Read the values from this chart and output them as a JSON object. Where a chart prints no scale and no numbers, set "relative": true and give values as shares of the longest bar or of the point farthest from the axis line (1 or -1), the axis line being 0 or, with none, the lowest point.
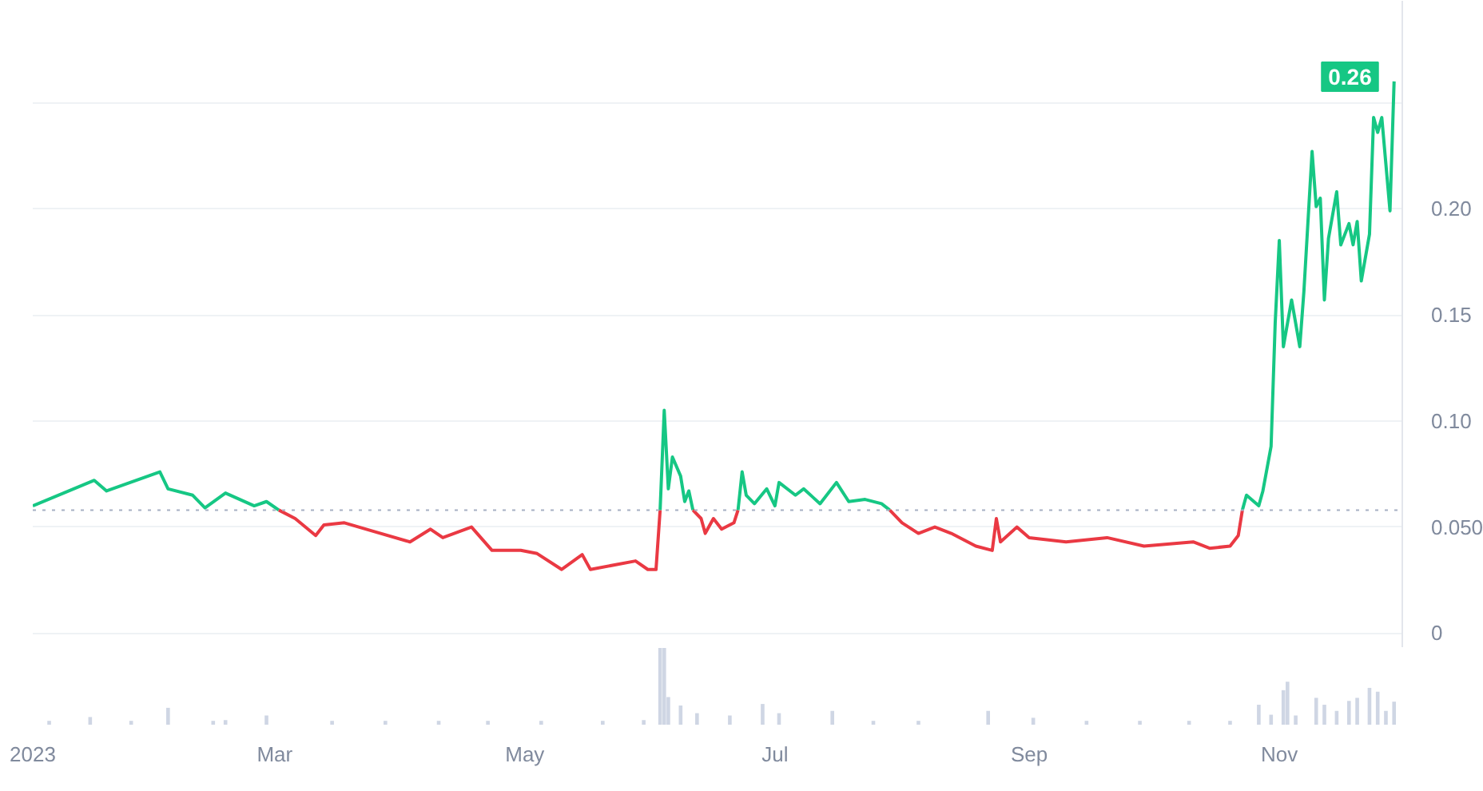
{
  "chart_data": [
    {
      "type": "line",
      "xlim": [
        "2023-01-01",
        "2023-12-01"
      ],
      "ylim": [
        -0.007,
        0.298
      ],
      "yticks": [
        0,
        {
          "value": 0.05,
          "label": "0.050"
        },
        {
          "value": 0.1,
          "label": "0.10"
        },
        0.15,
        {
          "value": 0.2,
          "label": "0.20"
        },
        {
          "value": 0.25,
          "label": null
        }
      ],
      "tick_labels": "y",
      "grid": "y",
      "marker": "none",
      "line_style": "solid",
      "ref_lines": [
        {
          "axis": "y",
          "value": 0.058,
          "color": "#a6b0c3",
          "line_style": "dotted"
        }
      ],
      "annotations": [
        {
          "text": "0.26",
          "x": "2023-11-29",
          "y": 0.26
        }
      ],
      "series": [
        {
          "color": "#16c784",
          "x": [
            "2023-01-01",
            "2023-01-16",
            "2023-01-19",
            "2023-02-01",
            "2023-02-03",
            "2023-02-09",
            "2023-02-12",
            "2023-02-17",
            "2023-02-24",
            "2023-02-27",
            "2023-03-02"
          ],
          "values": [
            0.06,
            0.072,
            0.067,
            0.076,
            0.068,
            0.065,
            0.059,
            0.066,
            0.06,
            0.062,
            0.058
          ]
        },
        {
          "color": "#ea3943",
          "x": [
            "2023-03-02",
            "2023-03-06",
            "2023-03-11",
            "2023-03-13",
            "2023-03-18",
            "2023-03-25",
            "2023-04-03",
            "2023-04-08",
            "2023-04-11",
            "2023-04-18",
            "2023-04-23",
            "2023-04-30",
            "2023-05-04",
            "2023-05-10",
            "2023-05-15",
            "2023-05-17",
            "2023-05-28",
            "2023-05-31",
            "2023-06-02",
            "2023-06-03"
          ],
          "values": [
            0.058,
            0.054,
            0.046,
            0.051,
            0.052,
            0.048,
            0.043,
            0.049,
            0.045,
            0.05,
            0.039,
            0.039,
            0.0375,
            0.03,
            0.037,
            0.03,
            0.034,
            0.03,
            0.03,
            0.058
          ]
        },
        {
          "color": "#16c784",
          "x": [
            "2023-06-03",
            "2023-06-04",
            "2023-06-05",
            "2023-06-06",
            "2023-06-08",
            "2023-06-09",
            "2023-06-10",
            "2023-06-11"
          ],
          "values": [
            0.058,
            0.105,
            0.068,
            0.083,
            0.074,
            0.062,
            0.067,
            0.058
          ]
        },
        {
          "color": "#ea3943",
          "x": [
            "2023-06-11",
            "2023-06-13",
            "2023-06-14",
            "2023-06-16",
            "2023-06-18",
            "2023-06-21",
            "2023-06-22"
          ],
          "values": [
            0.058,
            0.054,
            0.047,
            0.054,
            0.049,
            0.052,
            0.058
          ]
        },
        {
          "color": "#16c784",
          "x": [
            "2023-06-22",
            "2023-06-23",
            "2023-06-24",
            "2023-06-26",
            "2023-06-29",
            "2023-07-01",
            "2023-07-02",
            "2023-07-06",
            "2023-07-08",
            "2023-07-12",
            "2023-07-16",
            "2023-07-19",
            "2023-07-23",
            "2023-07-27",
            "2023-07-29"
          ],
          "values": [
            0.058,
            0.076,
            0.065,
            0.061,
            0.068,
            0.06,
            0.071,
            0.065,
            0.068,
            0.061,
            0.071,
            0.062,
            0.063,
            0.061,
            0.058
          ]
        },
        {
          "color": "#ea3943",
          "x": [
            "2023-07-29",
            "2023-08-01",
            "2023-08-05",
            "2023-08-09",
            "2023-08-13",
            "2023-08-19",
            "2023-08-23",
            "2023-08-24",
            "2023-08-25",
            "2023-08-29",
            "2023-09-01",
            "2023-09-10",
            "2023-09-20",
            "2023-09-29",
            "2023-10-11",
            "2023-10-15",
            "2023-10-20",
            "2023-10-22",
            "2023-10-23"
          ],
          "values": [
            0.058,
            0.052,
            0.047,
            0.05,
            0.047,
            0.041,
            0.039,
            0.054,
            0.043,
            0.05,
            0.045,
            0.043,
            0.045,
            0.041,
            0.043,
            0.04,
            0.041,
            0.046,
            0.058
          ]
        },
        {
          "color": "#16c784",
          "x": [
            "2023-10-23",
            "2023-10-24",
            "2023-10-27",
            "2023-10-28",
            "2023-10-30",
            "2023-10-31",
            "2023-11-01",
            "2023-11-02",
            "2023-11-04",
            "2023-11-06",
            "2023-11-07",
            "2023-11-09",
            "2023-11-10",
            "2023-11-11",
            "2023-11-12",
            "2023-11-13",
            "2023-11-15",
            "2023-11-16",
            "2023-11-18",
            "2023-11-19",
            "2023-11-20",
            "2023-11-21",
            "2023-11-23",
            "2023-11-24",
            "2023-11-25",
            "2023-11-26",
            "2023-11-27",
            "2023-11-28",
            "2023-11-29"
          ],
          "values": [
            0.058,
            0.065,
            0.06,
            0.067,
            0.088,
            0.146,
            0.185,
            0.135,
            0.157,
            0.135,
            0.161,
            0.227,
            0.201,
            0.205,
            0.157,
            0.186,
            0.208,
            0.183,
            0.193,
            0.183,
            0.194,
            0.166,
            0.188,
            0.243,
            0.236,
            0.243,
            0.221,
            0.199,
            0.26
          ]
        }
      ]
    },
    {
      "type": "bar",
      "relative": true,
      "xlim": [
        "2023-01-01",
        "2023-12-01"
      ],
      "xticks": [
        {
          "value": "2023-01-01",
          "label": "2023"
        },
        {
          "value": "2023-03-01",
          "label": "Mar"
        },
        {
          "value": "2023-05-01",
          "label": "May"
        },
        {
          "value": "2023-07-01",
          "label": "Jul"
        },
        {
          "value": "2023-09-01",
          "label": "Sep"
        },
        {
          "value": "2023-11-01",
          "label": "Nov"
        }
      ],
      "tick_labels": "x",
      "grid": false,
      "color": "#cfd6e4",
      "x": [
        "2023-01-05",
        "2023-01-15",
        "2023-01-25",
        "2023-02-03",
        "2023-02-14",
        "2023-02-17",
        "2023-02-27",
        "2023-03-15",
        "2023-03-28",
        "2023-04-10",
        "2023-04-22",
        "2023-05-05",
        "2023-05-20",
        "2023-05-30",
        "2023-06-03",
        "2023-06-04",
        "2023-06-05",
        "2023-06-08",
        "2023-06-12",
        "2023-06-20",
        "2023-06-28",
        "2023-07-02",
        "2023-07-15",
        "2023-07-25",
        "2023-08-05",
        "2023-08-22",
        "2023-09-02",
        "2023-09-15",
        "2023-09-28",
        "2023-10-10",
        "2023-10-20",
        "2023-10-27",
        "2023-10-30",
        "2023-11-02",
        "2023-11-03",
        "2023-11-05",
        "2023-11-10",
        "2023-11-12",
        "2023-11-15",
        "2023-11-18",
        "2023-11-20",
        "2023-11-23",
        "2023-11-25",
        "2023-11-27",
        "2023-11-29"
      ],
      "values": [
        0.05,
        0.1,
        0.05,
        0.22,
        0.05,
        0.06,
        0.12,
        0.05,
        0.05,
        0.05,
        0.05,
        0.05,
        0.05,
        0.06,
        1.0,
        1.0,
        0.36,
        0.25,
        0.15,
        0.12,
        0.27,
        0.15,
        0.18,
        0.05,
        0.05,
        0.18,
        0.09,
        0.05,
        0.05,
        0.05,
        0.05,
        0.26,
        0.13,
        0.45,
        0.56,
        0.12,
        0.35,
        0.26,
        0.18,
        0.31,
        0.35,
        0.48,
        0.43,
        0.18,
        0.3
      ]
    }
  ]
}
